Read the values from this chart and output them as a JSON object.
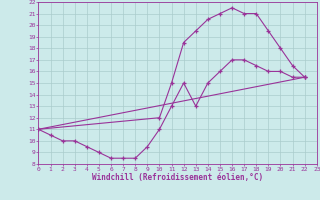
{
  "bg_color": "#cceaea",
  "line_color": "#993399",
  "grid_color": "#aacccc",
  "xlabel": "Windchill (Refroidissement éolien,°C)",
  "xlabel_color": "#993399",
  "xmin": 0,
  "xmax": 23,
  "ymin": 8,
  "ymax": 22,
  "line_straight": [
    [
      0,
      11
    ],
    [
      22,
      15.5
    ]
  ],
  "line_dip": [
    [
      0,
      11
    ],
    [
      1,
      10.5
    ],
    [
      2,
      10
    ],
    [
      3,
      10
    ],
    [
      4,
      9.5
    ],
    [
      5,
      9
    ],
    [
      6,
      8.5
    ],
    [
      7,
      8.5
    ],
    [
      8,
      8.5
    ],
    [
      9,
      9.5
    ],
    [
      10,
      11
    ],
    [
      11,
      13
    ],
    [
      12,
      15
    ],
    [
      13,
      13
    ],
    [
      14,
      15
    ],
    [
      15,
      16
    ],
    [
      16,
      17
    ],
    [
      17,
      17
    ],
    [
      18,
      16.5
    ],
    [
      19,
      16
    ],
    [
      20,
      16
    ],
    [
      21,
      15.5
    ],
    [
      22,
      15.5
    ]
  ],
  "line_arch": [
    [
      0,
      11
    ],
    [
      10,
      12
    ],
    [
      11,
      15
    ],
    [
      12,
      18.5
    ],
    [
      13,
      19.5
    ],
    [
      14,
      20.5
    ],
    [
      15,
      21
    ],
    [
      16,
      21.5
    ],
    [
      17,
      21
    ],
    [
      18,
      21
    ],
    [
      19,
      19.5
    ],
    [
      20,
      18
    ],
    [
      21,
      16.5
    ],
    [
      22,
      15.5
    ]
  ]
}
